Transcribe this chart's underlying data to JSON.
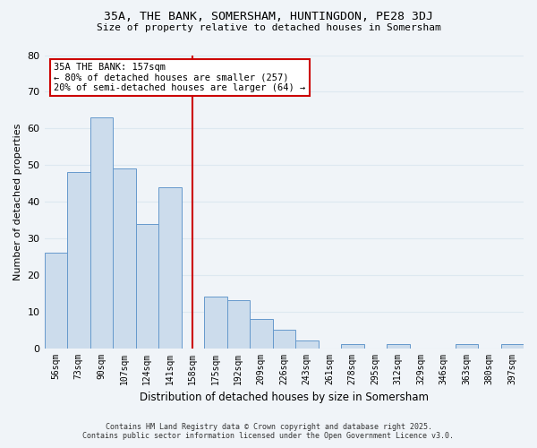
{
  "title": "35A, THE BANK, SOMERSHAM, HUNTINGDON, PE28 3DJ",
  "subtitle": "Size of property relative to detached houses in Somersham",
  "xlabel": "Distribution of detached houses by size in Somersham",
  "ylabel": "Number of detached properties",
  "bar_labels": [
    "56sqm",
    "73sqm",
    "90sqm",
    "107sqm",
    "124sqm",
    "141sqm",
    "158sqm",
    "175sqm",
    "192sqm",
    "209sqm",
    "226sqm",
    "243sqm",
    "261sqm",
    "278sqm",
    "295sqm",
    "312sqm",
    "329sqm",
    "346sqm",
    "363sqm",
    "380sqm",
    "397sqm"
  ],
  "bar_values": [
    26,
    48,
    63,
    49,
    34,
    44,
    0,
    14,
    13,
    8,
    5,
    2,
    0,
    1,
    0,
    1,
    0,
    0,
    1,
    0,
    1
  ],
  "bar_color": "#ccdcec",
  "bar_edge_color": "#6699cc",
  "marker_bar_index": 6,
  "marker_line_color": "#cc0000",
  "marker_box_color": "#cc0000",
  "annotation_line1": "35A THE BANK: 157sqm",
  "annotation_line2": "← 80% of detached houses are smaller (257)",
  "annotation_line3": "20% of semi-detached houses are larger (64) →",
  "ylim": [
    0,
    80
  ],
  "yticks": [
    0,
    10,
    20,
    30,
    40,
    50,
    60,
    70,
    80
  ],
  "grid_color": "#dde8f0",
  "background_color": "#f0f4f8",
  "footer_line1": "Contains HM Land Registry data © Crown copyright and database right 2025.",
  "footer_line2": "Contains public sector information licensed under the Open Government Licence v3.0."
}
